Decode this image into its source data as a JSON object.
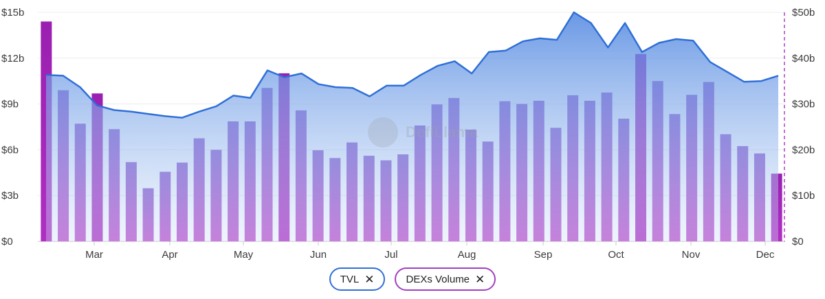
{
  "chart_data": {
    "type": "bar",
    "x_labels": [
      "Mar",
      "Apr",
      "May",
      "Jun",
      "Jul",
      "Aug",
      "Sep",
      "Oct",
      "Nov",
      "Dec"
    ],
    "left_axis": {
      "ticks": [
        "$0",
        "$3b",
        "$6b",
        "$9b",
        "$12b",
        "$15b"
      ],
      "range": [
        0,
        15
      ]
    },
    "right_axis": {
      "ticks": [
        "$0",
        "$10b",
        "$20b",
        "$30b",
        "$40b",
        "$50b"
      ],
      "range": [
        0,
        50
      ]
    },
    "series": [
      {
        "name": "TVL",
        "type": "area",
        "axis": "left",
        "color": "#2f6fd6",
        "values": [
          10.9,
          10.85,
          10.1,
          8.9,
          8.6,
          8.5,
          8.35,
          8.2,
          8.1,
          8.5,
          8.85,
          9.55,
          9.4,
          11.2,
          10.75,
          11.0,
          10.3,
          10.1,
          10.05,
          9.5,
          10.2,
          10.2,
          10.9,
          11.5,
          11.8,
          11.0,
          12.4,
          12.5,
          13.1,
          13.3,
          13.2,
          15.0,
          14.3,
          12.7,
          14.3,
          12.4,
          13.0,
          13.25,
          13.15,
          11.75,
          11.1,
          10.45,
          10.5,
          10.85
        ]
      },
      {
        "name": "DEXs Volume",
        "type": "bar",
        "axis": "right",
        "color": "#a23ec1",
        "highlight_color": "#9a1fb1",
        "values": [
          48,
          33,
          25.7,
          32.3,
          24.5,
          17.3,
          11.6,
          15.2,
          17.2,
          22.5,
          20,
          26.2,
          26.2,
          33.5,
          36.7,
          28.6,
          19.9,
          18.2,
          21.6,
          18.7,
          17.7,
          19,
          25.3,
          29.9,
          31.3,
          24.4,
          21.8,
          30.6,
          30,
          30.7,
          24.8,
          31.9,
          30.7,
          32.5,
          26.8,
          40.9,
          35,
          27.8,
          32,
          34.8,
          23.4,
          20.8,
          19.2,
          14.8
        ]
      }
    ],
    "legend_placement": "bottom-center",
    "grid": true,
    "watermark": "DefiLlama"
  },
  "legend": {
    "tvl_label": "TVL",
    "dex_label": "DEXs Volume",
    "remove_glyph": "✕",
    "tvl_color": "#2f6fd6",
    "dex_color": "#a23ec1"
  }
}
